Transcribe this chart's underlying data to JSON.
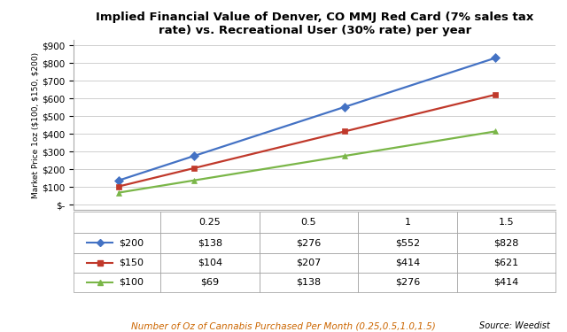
{
  "title": "Implied Financial Value of Denver, CO MMJ Red Card (7% sales tax\nrate) vs. Recreational User (30% rate) per year",
  "xlabel": "Number of Oz of Cannabis Purchased Per Month (0.25,0.5,1.0,1.5)",
  "ylabel": "Market Price 1oz ($100, $150, $200)",
  "source": "Source: Weedist",
  "x": [
    0.25,
    0.5,
    1.0,
    1.5
  ],
  "series": [
    {
      "label": "$200",
      "color": "#4472C4",
      "marker": "D",
      "values": [
        138,
        276,
        552,
        828
      ]
    },
    {
      "label": "$150",
      "color": "#C0392B",
      "marker": "s",
      "values": [
        104,
        207,
        414,
        621
      ]
    },
    {
      "label": "$100",
      "color": "#7AB648",
      "marker": "^",
      "values": [
        69,
        138,
        276,
        414
      ]
    }
  ],
  "yticks": [
    0,
    100,
    200,
    300,
    400,
    500,
    600,
    700,
    800,
    900
  ],
  "ytick_labels": [
    "$-",
    "$100",
    "$200",
    "$300",
    "$400",
    "$500",
    "$600",
    "$700",
    "$800",
    "$900"
  ],
  "xticks": [
    0.25,
    0.5,
    1.0,
    1.5
  ],
  "ylim": [
    -30,
    930
  ],
  "xlim": [
    0.1,
    1.7
  ],
  "table_header": [
    "",
    "0.25",
    "0.5",
    "1",
    "1.5"
  ],
  "table_rows": [
    [
      "$138",
      "$276",
      "$552",
      "$828"
    ],
    [
      "$104",
      "$207",
      "$414",
      "$621"
    ],
    [
      "$69",
      "$138",
      "$276",
      "$414"
    ]
  ],
  "row_labels": [
    "$200",
    "$150",
    "$100"
  ],
  "row_colors": [
    "#4472C4",
    "#C0392B",
    "#7AB648"
  ],
  "row_markers": [
    "D",
    "s",
    "^"
  ],
  "background_color": "#FFFFFF",
  "grid_color": "#C8C8C8",
  "xlabel_color": "#CC6600"
}
